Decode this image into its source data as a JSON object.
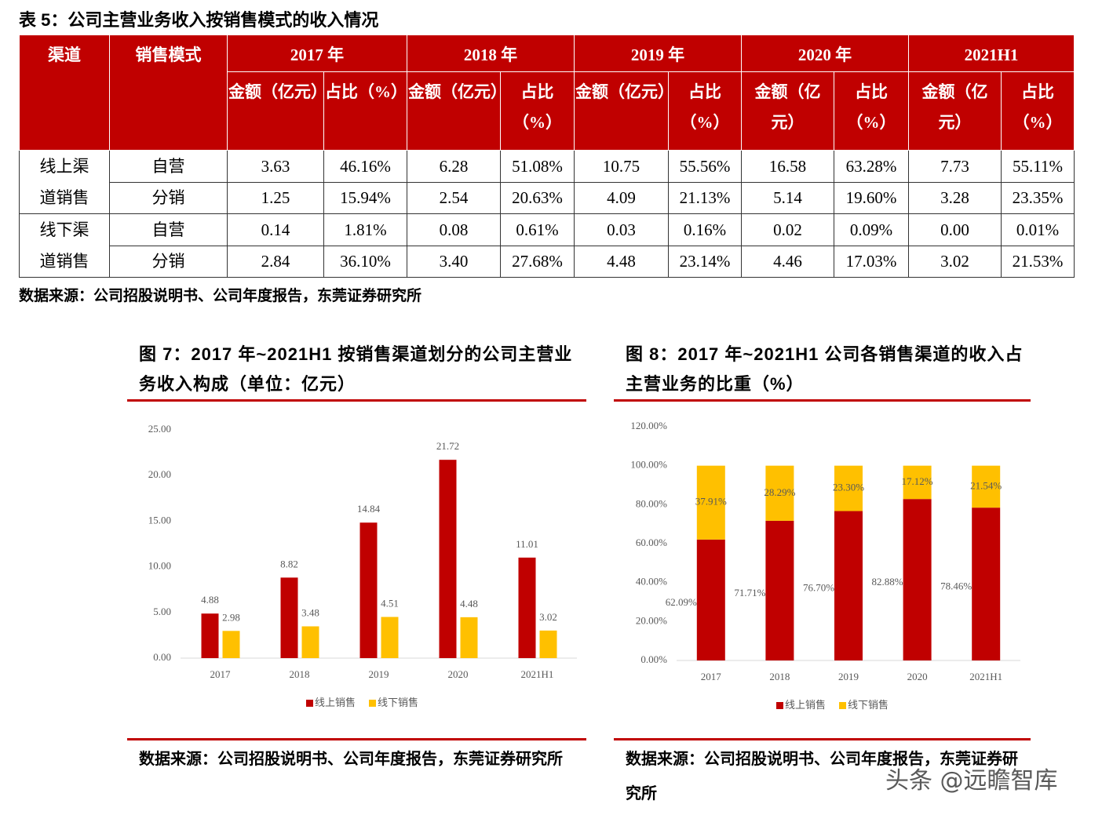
{
  "table": {
    "title": "表 5：公司主营业务收入按销售模式的收入情况",
    "header": [
      "渠道",
      "销售模式",
      "2017 年",
      "2018 年",
      "2019 年",
      "2020 年",
      "2021H1"
    ],
    "subheader": [
      "金额（亿元）",
      "占比（%）",
      "金额（亿元）",
      "占比（%）",
      "金额（亿元）",
      "占比（%）",
      "金额（亿元）",
      "占比（%）",
      "金额（亿元）",
      "占比（%）"
    ],
    "groups": [
      {
        "channel": "线上渠道销售",
        "rows": [
          {
            "mode": "自营",
            "cells": [
              "3.63",
              "46.16%",
              "6.28",
              "51.08%",
              "10.75",
              "55.56%",
              "16.58",
              "63.28%",
              "7.73",
              "55.11%"
            ]
          },
          {
            "mode": "分销",
            "cells": [
              "1.25",
              "15.94%",
              "2.54",
              "20.63%",
              "4.09",
              "21.13%",
              "5.14",
              "19.60%",
              "3.28",
              "23.35%"
            ]
          }
        ]
      },
      {
        "channel": "线下渠道销售",
        "rows": [
          {
            "mode": "自营",
            "cells": [
              "0.14",
              "1.81%",
              "0.08",
              "0.61%",
              "0.03",
              "0.16%",
              "0.02",
              "0.09%",
              "0.00",
              "0.01%"
            ]
          },
          {
            "mode": "分销",
            "cells": [
              "2.84",
              "36.10%",
              "3.40",
              "27.68%",
              "4.48",
              "23.14%",
              "4.46",
              "17.03%",
              "3.02",
              "21.53%"
            ]
          }
        ]
      }
    ],
    "source": "数据来源：公司招股说明书、公司年度报告，东莞证券研究所"
  },
  "chart_data": [
    {
      "type": "bar",
      "title": "图 7：2017 年~2021H1 按销售渠道划分的公司主营业务收入构成（单位：亿元）",
      "categories": [
        "2017",
        "2018",
        "2019",
        "2020",
        "2021H1"
      ],
      "series": [
        {
          "name": "线上销售",
          "color": "#c00000",
          "values": [
            4.88,
            8.82,
            14.84,
            21.72,
            11.01
          ]
        },
        {
          "name": "线下销售",
          "color": "#ffc000",
          "values": [
            2.98,
            3.48,
            4.51,
            4.48,
            3.02
          ]
        }
      ],
      "ylim": [
        0,
        25
      ],
      "yticks": [
        {
          "value": 0,
          "label": "0.00"
        },
        {
          "value": 5,
          "label": "5.00"
        },
        {
          "value": 10,
          "label": "10.00"
        },
        {
          "value": 15,
          "label": "15.00"
        },
        {
          "value": 20,
          "label": "20.00"
        },
        {
          "value": 25,
          "label": "25.00"
        }
      ],
      "source": "数据来源：公司招股说明书、公司年度报告，东莞证券研究所"
    },
    {
      "type": "stacked_bar",
      "title": "图 8：2017 年~2021H1 公司各销售渠道的收入占主营业务的比重（%）",
      "categories": [
        "2017",
        "2018",
        "2019",
        "2020",
        "2021H1"
      ],
      "series": [
        {
          "name": "线上销售",
          "color": "#c00000",
          "values": [
            62.09,
            71.71,
            76.7,
            82.88,
            78.46
          ],
          "value_labels": [
            "62.09%",
            "71.71%",
            "76.70%",
            "82.88%",
            "78.46%"
          ]
        },
        {
          "name": "线下销售",
          "color": "#ffc000",
          "values": [
            37.91,
            28.29,
            23.3,
            17.12,
            21.54
          ],
          "value_labels": [
            "37.91%",
            "28.29%",
            "23.30%",
            "17.12%",
            "21.54%"
          ]
        }
      ],
      "ylim": [
        0,
        120
      ],
      "yticks": [
        {
          "value": 0,
          "label": "0.00%"
        },
        {
          "value": 20,
          "label": "20.00%"
        },
        {
          "value": 40,
          "label": "40.00%"
        },
        {
          "value": 60,
          "label": "60.00%"
        },
        {
          "value": 80,
          "label": "80.00%"
        },
        {
          "value": 100,
          "label": "100.00%"
        },
        {
          "value": 120,
          "label": "120.00%"
        }
      ],
      "source": "数据来源：公司招股说明书、公司年度报告，东莞证券研究所"
    }
  ],
  "watermark": "头条 @远瞻智库"
}
